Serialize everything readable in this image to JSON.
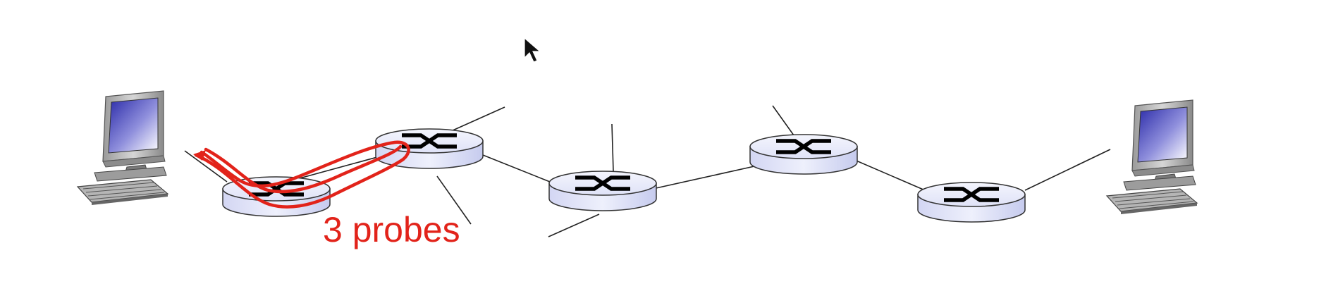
{
  "diagram": {
    "annotation": "3 probes",
    "colors": {
      "probe": "#e2231a",
      "router_top": "#eceefb",
      "router_side": "#c9cdef",
      "link": "#222222",
      "screen": "#2f2fb0"
    },
    "icons": [
      "source-host-icon",
      "router-icon",
      "destination-host-icon",
      "mouse-pointer-icon"
    ],
    "routers": 5
  }
}
